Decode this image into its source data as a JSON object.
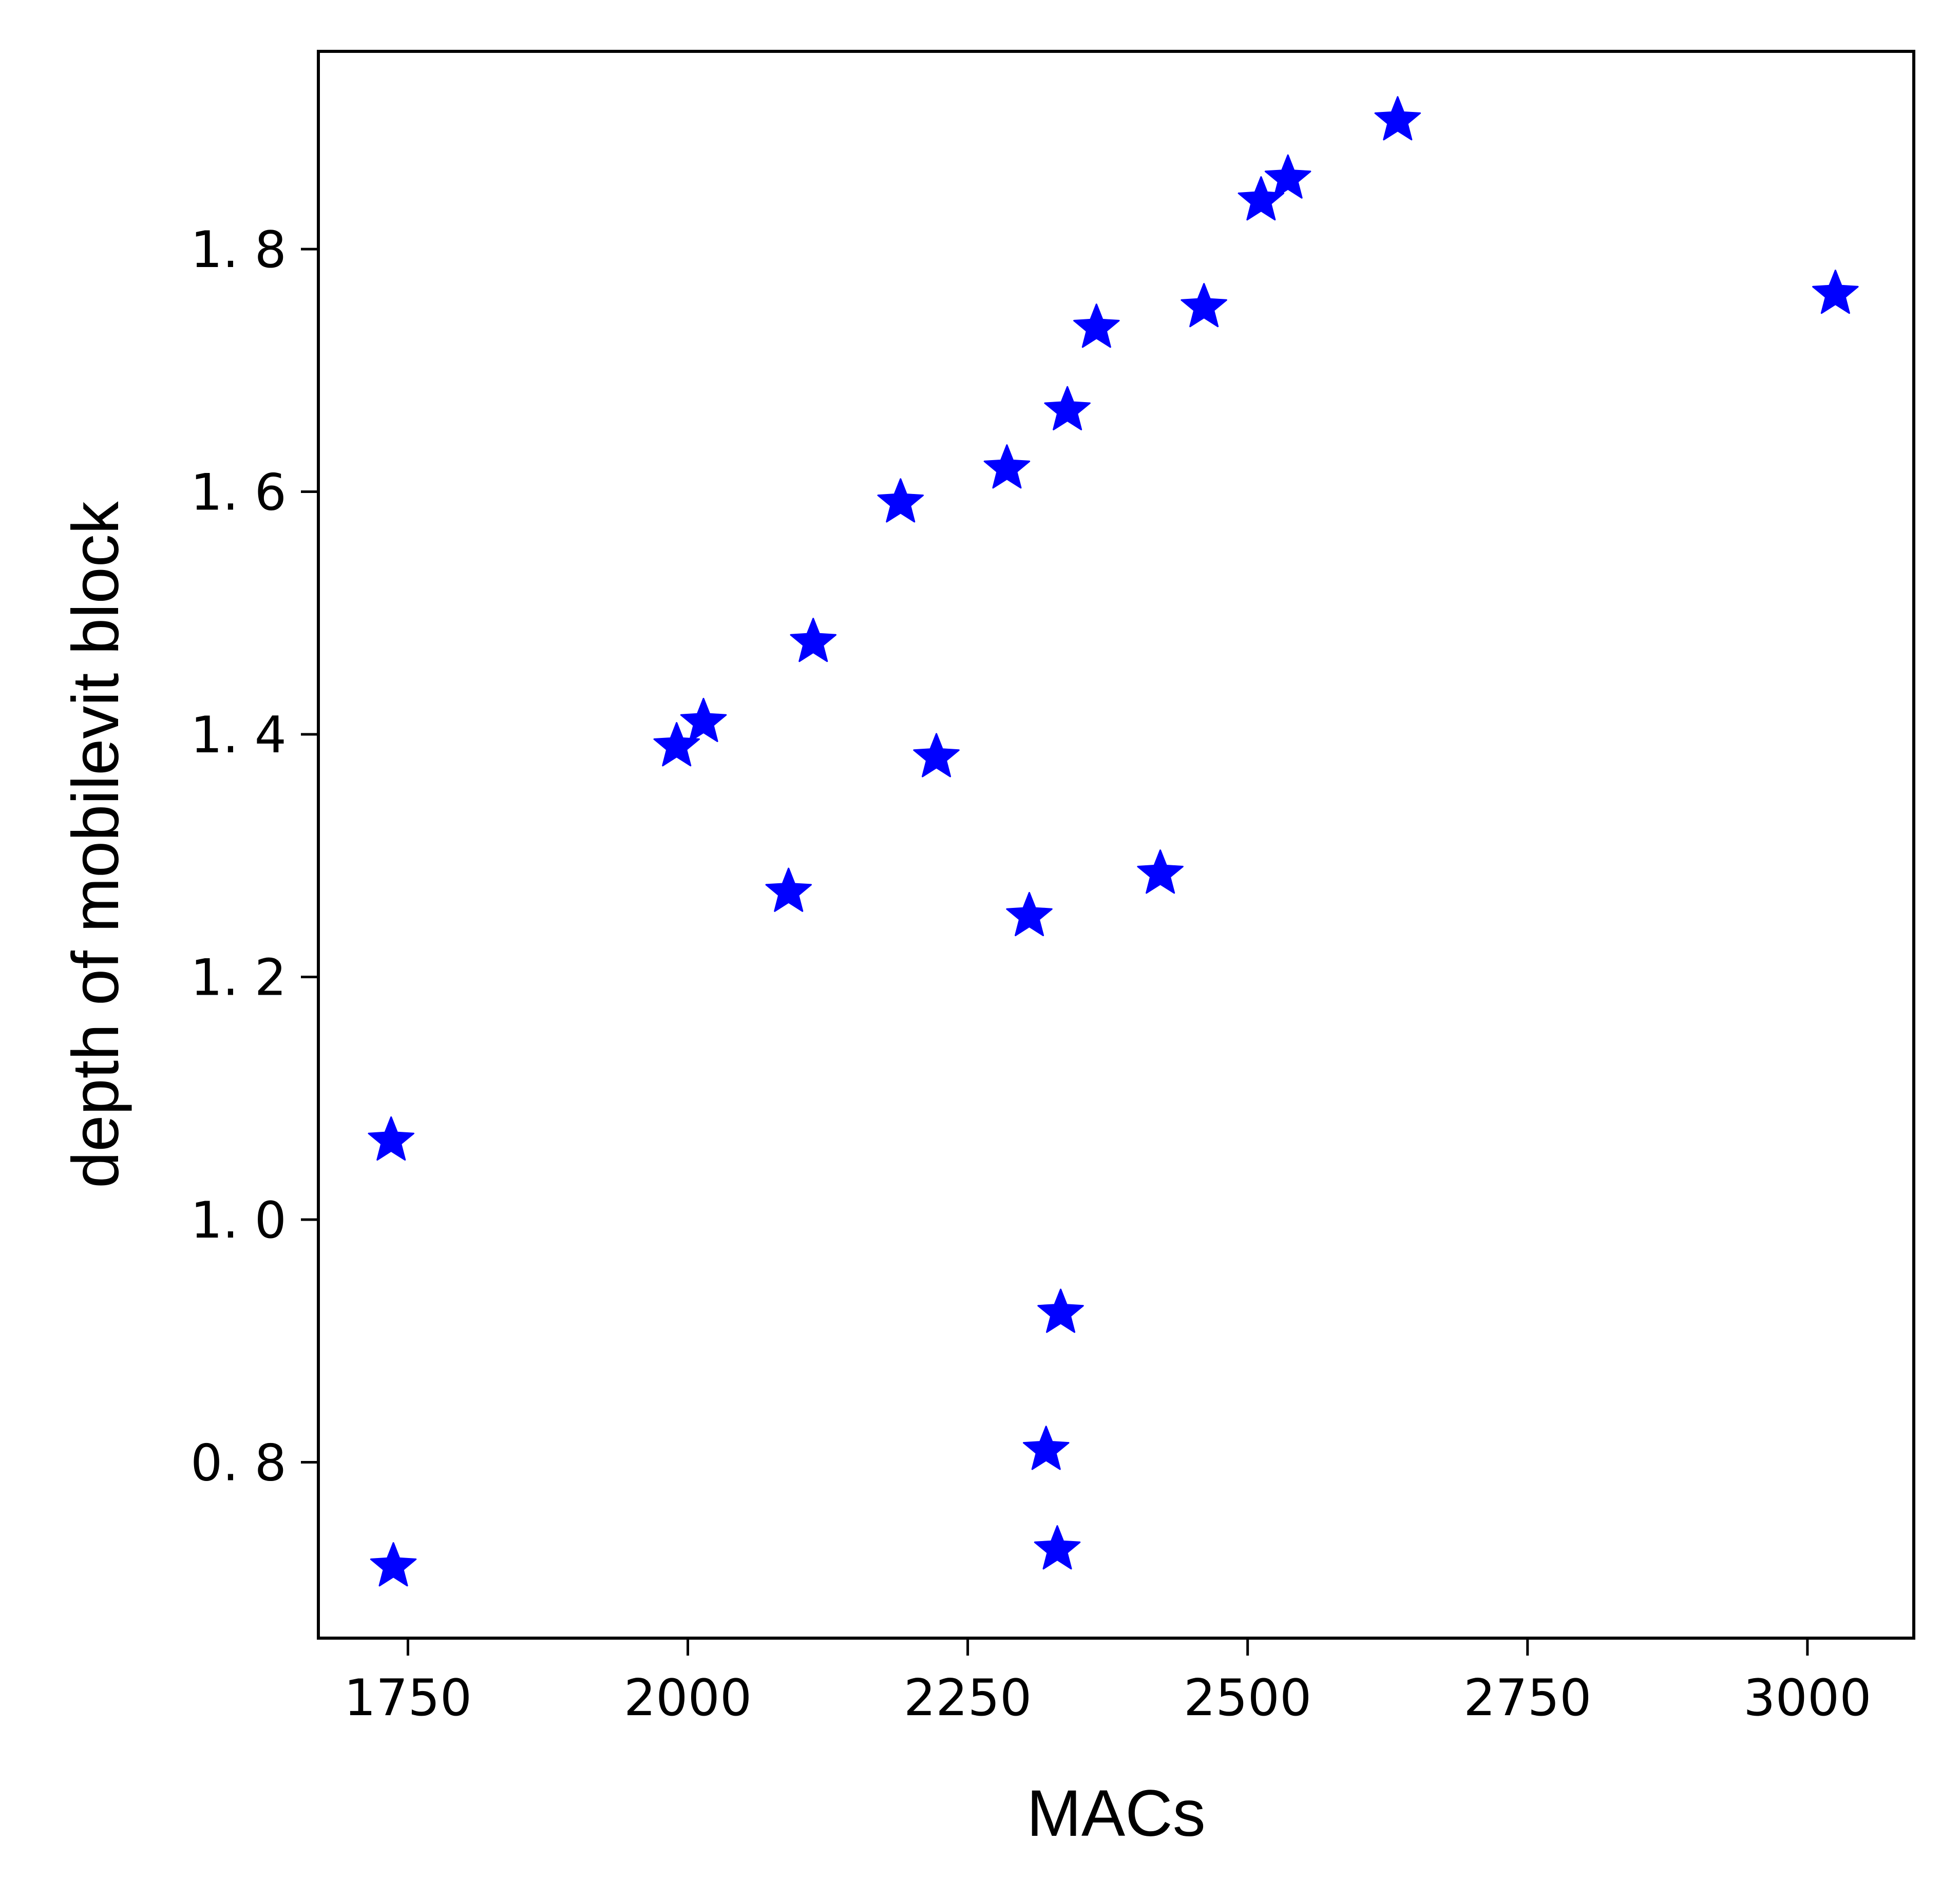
{
  "chart_data": {
    "type": "scatter",
    "title": "",
    "xlabel": "MACs",
    "ylabel": "depth of mobilevit block",
    "xlim": [
      1670,
      3095
    ],
    "ylim": [
      0.655,
      1.963
    ],
    "xticks": [
      1750,
      2000,
      2250,
      2500,
      2750,
      3000
    ],
    "xtick_labels": [
      "1750",
      "2000",
      "2250",
      "2500",
      "2750",
      "3000"
    ],
    "yticks": [
      0.8,
      1.0,
      1.2,
      1.4,
      1.6,
      1.8
    ],
    "ytick_labels": [
      "0. 8",
      "1. 0",
      "1. 2",
      "1. 4",
      "1. 6",
      "1. 8"
    ],
    "grid": false,
    "legend": "none",
    "marker": "star",
    "marker_color": "#0000ff",
    "series": [
      {
        "points": [
          {
            "x": 1735,
            "y": 1.065
          },
          {
            "x": 1737,
            "y": 0.714
          },
          {
            "x": 1990,
            "y": 1.39
          },
          {
            "x": 2014,
            "y": 1.41
          },
          {
            "x": 2090,
            "y": 1.27
          },
          {
            "x": 2112,
            "y": 1.476
          },
          {
            "x": 2190,
            "y": 1.591
          },
          {
            "x": 2222,
            "y": 1.381
          },
          {
            "x": 2285,
            "y": 1.619
          },
          {
            "x": 2305,
            "y": 1.25
          },
          {
            "x": 2320,
            "y": 0.81
          },
          {
            "x": 2330,
            "y": 0.728
          },
          {
            "x": 2333,
            "y": 0.923
          },
          {
            "x": 2339,
            "y": 1.667
          },
          {
            "x": 2365,
            "y": 1.735
          },
          {
            "x": 2422,
            "y": 1.285
          },
          {
            "x": 2461,
            "y": 1.752
          },
          {
            "x": 2512,
            "y": 1.84
          },
          {
            "x": 2536,
            "y": 1.858
          },
          {
            "x": 2634,
            "y": 1.906
          },
          {
            "x": 3025,
            "y": 1.763
          }
        ]
      }
    ]
  }
}
